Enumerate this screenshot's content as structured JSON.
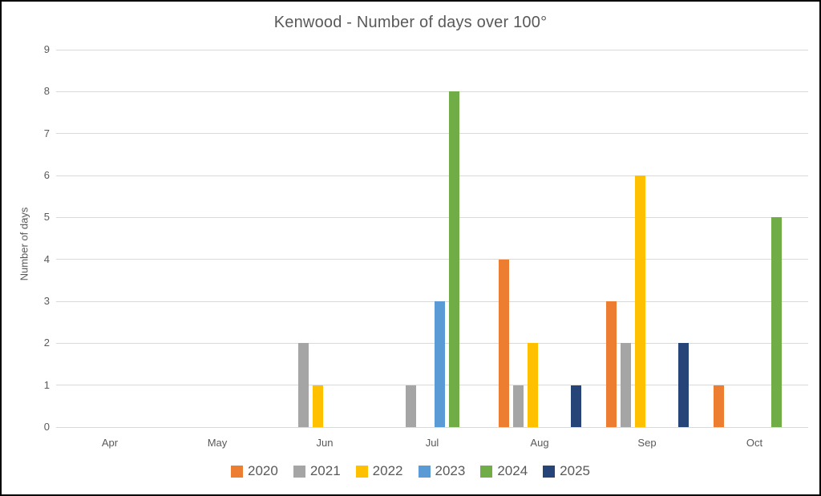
{
  "chart_data": {
    "type": "bar",
    "title": "Kenwood - Number of days over 100°",
    "xlabel": "",
    "ylabel": "Number of days",
    "categories": [
      "Apr",
      "May",
      "Jun",
      "Jul",
      "Aug",
      "Sep",
      "Oct"
    ],
    "series": [
      {
        "name": "2020",
        "color": "#ED7D31",
        "values": [
          0,
          0,
          0,
          0,
          4,
          3,
          1
        ]
      },
      {
        "name": "2021",
        "color": "#A5A5A5",
        "values": [
          0,
          0,
          2,
          1,
          1,
          2,
          0
        ]
      },
      {
        "name": "2022",
        "color": "#FFC000",
        "values": [
          0,
          0,
          1,
          0,
          2,
          6,
          0
        ]
      },
      {
        "name": "2023",
        "color": "#5B9BD5",
        "values": [
          0,
          0,
          0,
          3,
          0,
          0,
          0
        ]
      },
      {
        "name": "2024",
        "color": "#70AD47",
        "values": [
          0,
          0,
          0,
          8,
          0,
          0,
          5
        ]
      },
      {
        "name": "2025",
        "color": "#264478",
        "values": [
          0,
          0,
          0,
          0,
          1,
          2,
          0
        ]
      }
    ],
    "ylim": [
      0,
      9
    ],
    "ytick_step": 1,
    "grid": true,
    "legend_position": "bottom"
  },
  "colors": {
    "text": "#595959",
    "gridline": "#D9D9D9",
    "background": "#FFFFFF",
    "border": "#000000"
  }
}
